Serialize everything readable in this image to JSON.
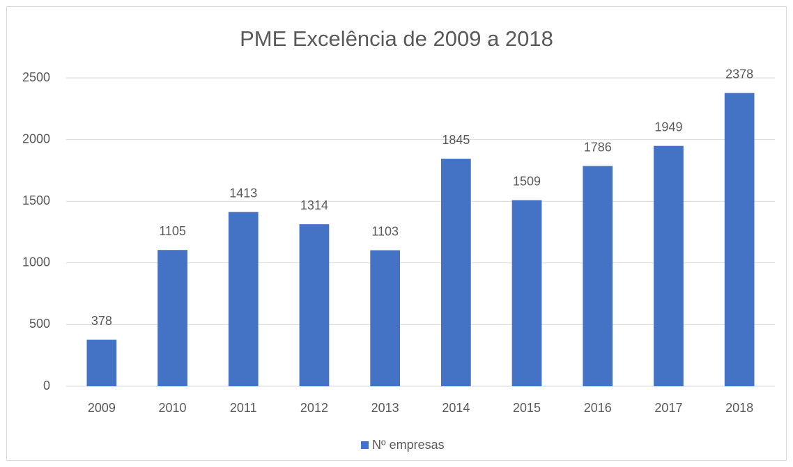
{
  "chart_data": {
    "type": "bar",
    "title": "PME Excelência de 2009 a 2018",
    "categories": [
      "2009",
      "2010",
      "2011",
      "2012",
      "2013",
      "2014",
      "2015",
      "2016",
      "2017",
      "2018"
    ],
    "series": [
      {
        "name": "Nº empresas",
        "color": "#4472c4",
        "values": [
          378,
          1105,
          1413,
          1314,
          1103,
          1845,
          1509,
          1786,
          1949,
          2378
        ]
      }
    ],
    "ylim": [
      0,
      2500
    ],
    "yticks": [
      0,
      500,
      1000,
      1500,
      2000,
      2500
    ],
    "grid": true,
    "legend": "bottom"
  }
}
